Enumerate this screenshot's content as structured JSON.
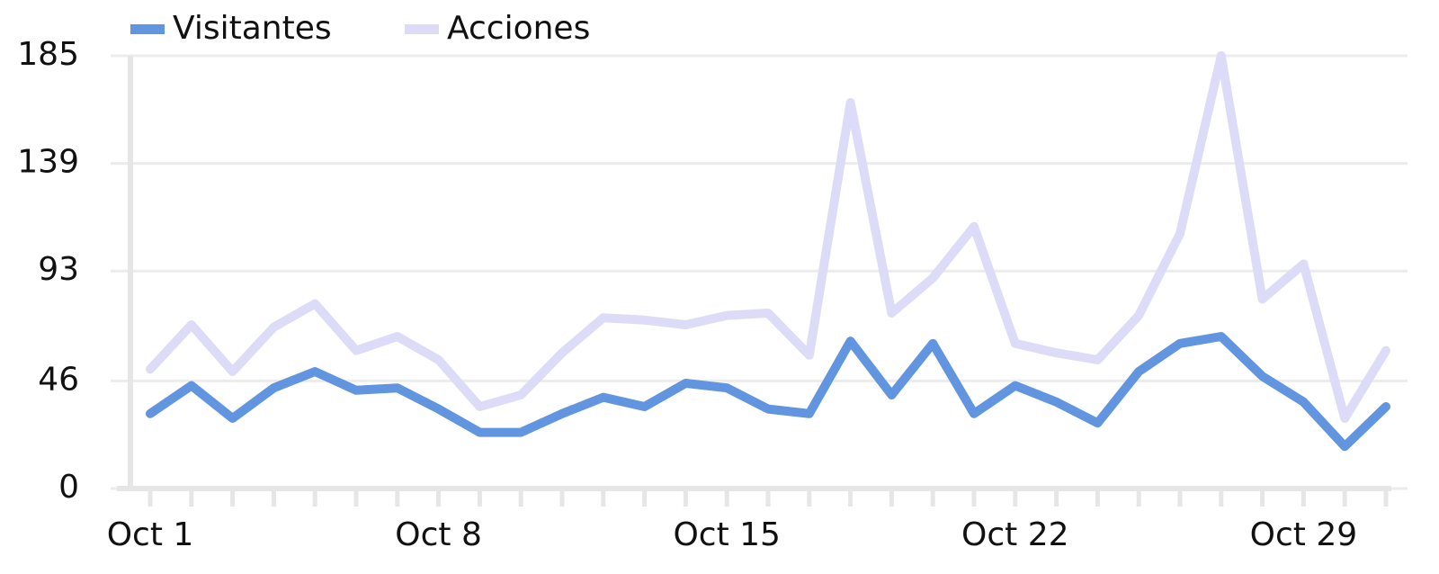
{
  "chart_data": {
    "type": "line",
    "categories": [
      "Oct 1",
      null,
      null,
      null,
      null,
      null,
      null,
      "Oct 8",
      null,
      null,
      null,
      null,
      null,
      null,
      "Oct 15",
      null,
      null,
      null,
      null,
      null,
      null,
      "Oct 22",
      null,
      null,
      null,
      null,
      null,
      null,
      "Oct 29",
      null,
      null
    ],
    "series": [
      {
        "name": "Visitantes",
        "color": "#6295e0",
        "values": [
          32,
          44,
          30,
          43,
          50,
          42,
          43,
          34,
          24,
          24,
          32,
          39,
          35,
          45,
          43,
          34,
          32,
          63,
          40,
          62,
          32,
          44,
          37,
          28,
          50,
          62,
          65,
          48,
          37,
          18,
          35
        ]
      },
      {
        "name": "Acciones",
        "color": "#dcdcf8",
        "values": [
          51,
          70,
          50,
          69,
          79,
          59,
          65,
          55,
          35,
          40,
          58,
          73,
          72,
          70,
          74,
          75,
          57,
          165,
          75,
          90,
          112,
          62,
          58,
          55,
          74,
          109,
          185,
          81,
          96,
          30,
          59
        ]
      }
    ],
    "ylim": [
      0,
      185
    ],
    "yticks": [
      0,
      46,
      93,
      139,
      185
    ],
    "grid": true,
    "legend": "top-left"
  }
}
